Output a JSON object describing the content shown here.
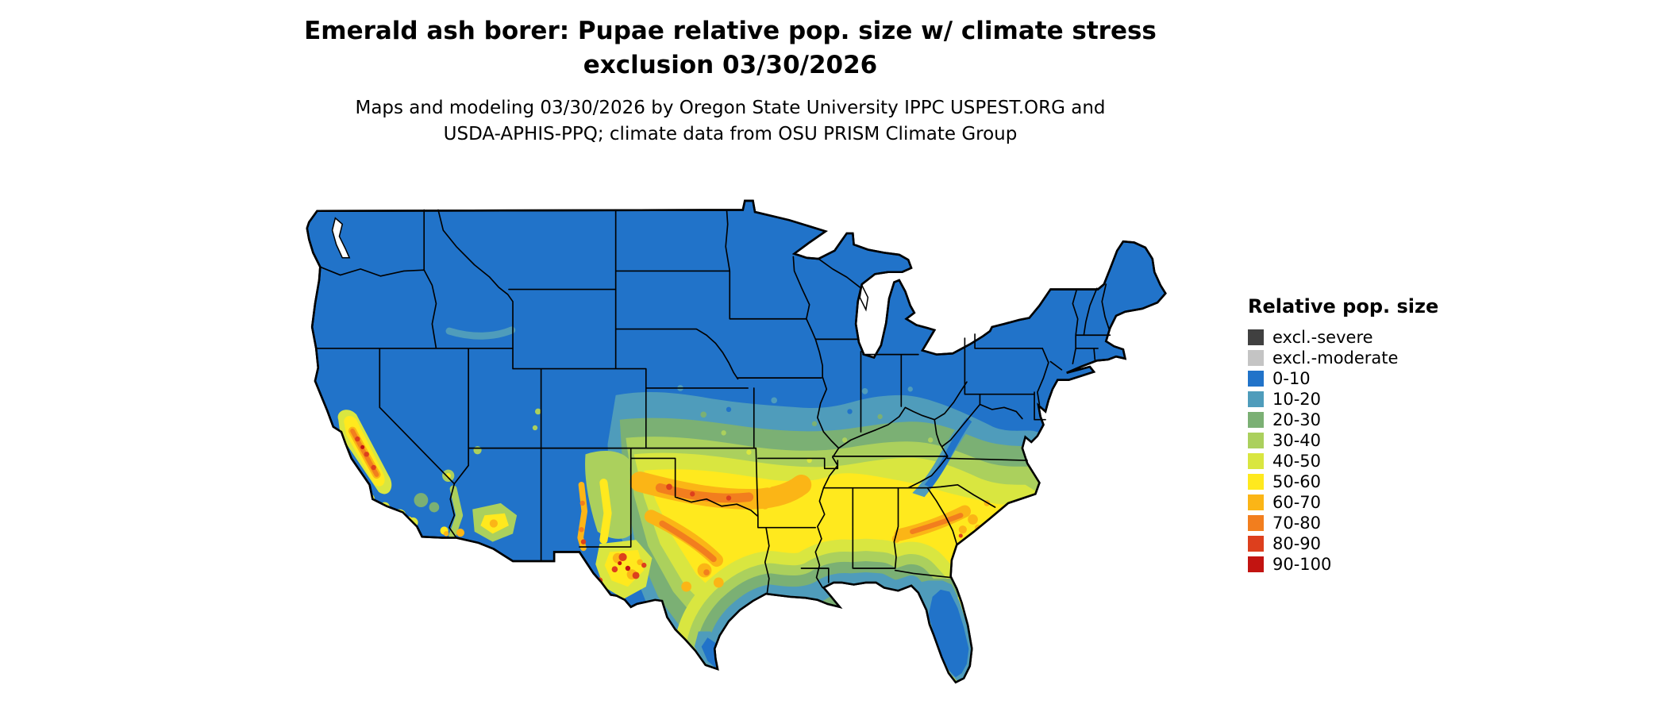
{
  "title": {
    "line1": "Emerald ash borer: Pupae relative pop. size w/ climate stress",
    "line2": "exclusion 03/30/2026"
  },
  "subtitle": {
    "line1": "Maps and modeling 03/30/2026 by Oregon State University IPPC USPEST.ORG and",
    "line2": "USDA-APHIS-PPQ; climate data from OSU PRISM Climate Group"
  },
  "legend": {
    "title": "Relative pop. size",
    "items": [
      {
        "key": "sev",
        "label": "excl.-severe",
        "color": "#404040"
      },
      {
        "key": "mod",
        "label": "excl.-moderate",
        "color": "#c4c4c4"
      },
      {
        "key": "b0",
        "label": "0-10",
        "color": "#2173c9"
      },
      {
        "key": "b10",
        "label": "10-20",
        "color": "#4f9cbb"
      },
      {
        "key": "b20",
        "label": "20-30",
        "color": "#7bb074"
      },
      {
        "key": "b30",
        "label": "30-40",
        "color": "#abd05d"
      },
      {
        "key": "b40",
        "label": "40-50",
        "color": "#d9e640"
      },
      {
        "key": "b50",
        "label": "50-60",
        "color": "#ffe91e"
      },
      {
        "key": "b60",
        "label": "60-70",
        "color": "#fbb516"
      },
      {
        "key": "b70",
        "label": "70-80",
        "color": "#f27e1e"
      },
      {
        "key": "b80",
        "label": "80-90",
        "color": "#dd3f1d"
      },
      {
        "key": "b90",
        "label": "90-100",
        "color": "#c21411"
      }
    ]
  },
  "map": {
    "description": "Contiguous United States map of emerald ash borer pupae relative population size classes",
    "border_color": "#000000",
    "water_color": "#ffffff",
    "regions": [
      {
        "area": "Northern tier, Rockies, Great Basin, Northeast",
        "class": "0-10"
      },
      {
        "area": "Central Plains, lower Midwest, Ohio Valley, Virginia",
        "class": "10-20 to 30-40"
      },
      {
        "area": "Southern Plains, mid-South, Southeast interior",
        "class": "40-50 to 60-70"
      },
      {
        "area": "Texas/Oklahoma swath and Georgia-Carolinas coastal plain",
        "class": "70-80"
      },
      {
        "area": "West Texas and Rio Grande hotspots",
        "class": "80-90 to 90-100"
      },
      {
        "area": "California Central Valley",
        "class": "50-60 to 80-90"
      },
      {
        "area": "Gulf Coast, south Texas, Florida peninsula",
        "class": "fades back to 0-10"
      }
    ]
  }
}
